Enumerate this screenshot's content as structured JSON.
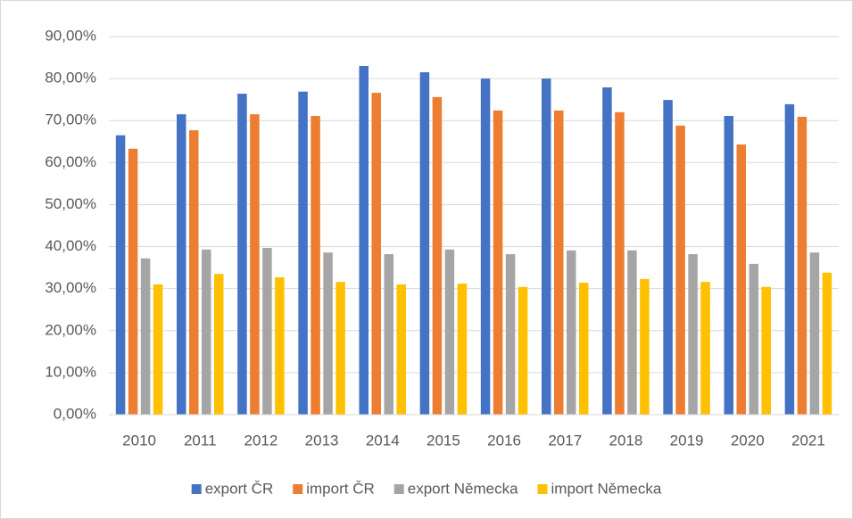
{
  "chart_data": {
    "type": "bar",
    "categories": [
      "2010",
      "2011",
      "2012",
      "2013",
      "2014",
      "2015",
      "2016",
      "2017",
      "2018",
      "2019",
      "2020",
      "2021"
    ],
    "series": [
      {
        "name": "export ČR",
        "color": "#4472c4",
        "values": [
          66.5,
          71.5,
          76.4,
          76.9,
          83.0,
          81.5,
          80.0,
          80.0,
          77.9,
          74.9,
          71.1,
          73.9
        ]
      },
      {
        "name": "import ČR",
        "color": "#ed7d31",
        "values": [
          63.3,
          67.7,
          71.5,
          71.1,
          76.6,
          75.6,
          72.4,
          72.4,
          72.0,
          68.8,
          64.3,
          70.9
        ]
      },
      {
        "name": "export Německa",
        "color": "#a5a5a5",
        "values": [
          37.2,
          39.3,
          39.7,
          38.6,
          38.2,
          39.3,
          38.2,
          39.1,
          39.1,
          38.2,
          35.9,
          38.6
        ]
      },
      {
        "name": "import Německa",
        "color": "#ffc000",
        "values": [
          31.0,
          33.5,
          32.7,
          31.6,
          31.0,
          31.2,
          30.4,
          31.4,
          32.3,
          31.6,
          30.4,
          33.8
        ]
      }
    ],
    "ylim": [
      0,
      90
    ],
    "yticks": [
      {
        "value": 0,
        "label": "0,00%"
      },
      {
        "value": 10,
        "label": "10,00%"
      },
      {
        "value": 20,
        "label": "20,00%"
      },
      {
        "value": 30,
        "label": "30,00%"
      },
      {
        "value": 40,
        "label": "40,00%"
      },
      {
        "value": 50,
        "label": "50,00%"
      },
      {
        "value": 60,
        "label": "60,00%"
      },
      {
        "value": 70,
        "label": "70,00%"
      },
      {
        "value": 80,
        "label": "80,00%"
      },
      {
        "value": 90,
        "label": "90,00%"
      }
    ],
    "grid": true,
    "legend": "bottom"
  }
}
